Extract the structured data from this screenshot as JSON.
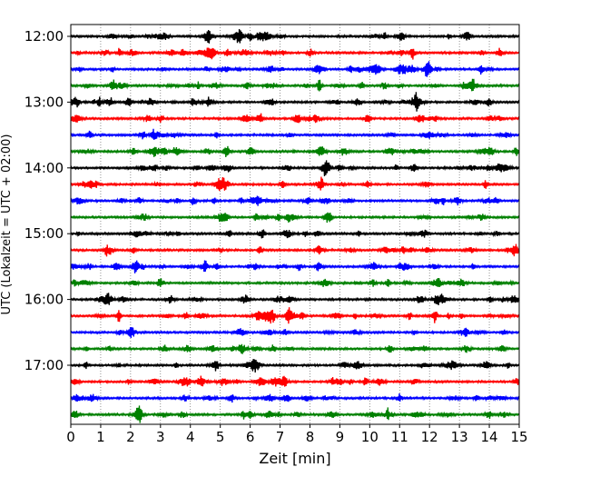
{
  "chart_data": {
    "type": "line",
    "title": "",
    "xlabel": "Zeit  [min]",
    "ylabel": "UTC (Lokalzeit = UTC + 02:00)",
    "xlim": [
      0,
      15
    ],
    "x_ticks": [
      0,
      1,
      2,
      3,
      4,
      5,
      6,
      7,
      8,
      9,
      10,
      11,
      12,
      13,
      14,
      15
    ],
    "x_tick_labels": [
      "0",
      "1",
      "2",
      "3",
      "4",
      "5",
      "6",
      "7",
      "8",
      "9",
      "10",
      "11",
      "12",
      "13",
      "14",
      "15"
    ],
    "y_tick_labels": [
      "12:00",
      "13:00",
      "14:00",
      "15:00",
      "16:00",
      "17:00"
    ],
    "grid": "vertical dotted lines at each minute",
    "trace_minutes": 15,
    "trace_colors": [
      "#000000",
      "#ff0000",
      "#0000ff",
      "#008000"
    ],
    "traces": [
      {
        "start": "12:00",
        "color": "#000000"
      },
      {
        "start": "12:15",
        "color": "#ff0000"
      },
      {
        "start": "12:30",
        "color": "#0000ff"
      },
      {
        "start": "12:45",
        "color": "#008000"
      },
      {
        "start": "13:00",
        "color": "#000000"
      },
      {
        "start": "13:15",
        "color": "#ff0000"
      },
      {
        "start": "13:30",
        "color": "#0000ff"
      },
      {
        "start": "13:45",
        "color": "#008000"
      },
      {
        "start": "14:00",
        "color": "#000000"
      },
      {
        "start": "14:15",
        "color": "#ff0000"
      },
      {
        "start": "14:30",
        "color": "#0000ff"
      },
      {
        "start": "14:45",
        "color": "#008000"
      },
      {
        "start": "15:00",
        "color": "#000000"
      },
      {
        "start": "15:15",
        "color": "#ff0000"
      },
      {
        "start": "15:30",
        "color": "#0000ff"
      },
      {
        "start": "15:45",
        "color": "#008000"
      },
      {
        "start": "16:00",
        "color": "#000000"
      },
      {
        "start": "16:15",
        "color": "#ff0000"
      },
      {
        "start": "16:30",
        "color": "#0000ff"
      },
      {
        "start": "16:45",
        "color": "#008000"
      },
      {
        "start": "17:00",
        "color": "#000000"
      },
      {
        "start": "17:15",
        "color": "#ff0000"
      },
      {
        "start": "17:30",
        "color": "#0000ff"
      },
      {
        "start": "17:45",
        "color": "#008000"
      }
    ]
  }
}
